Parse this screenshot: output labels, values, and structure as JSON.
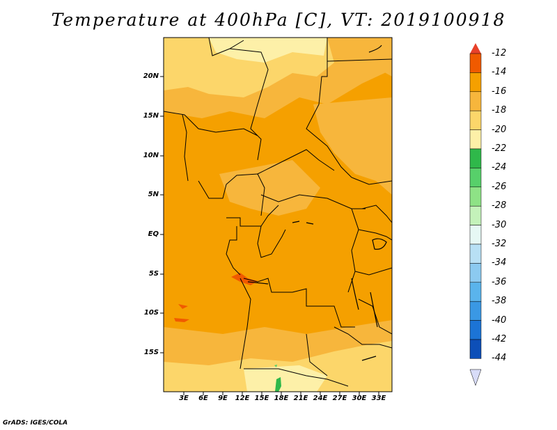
{
  "title": "Temperature at 400hPa [C], VT: 2019100918",
  "credit": "GrADS: IGES/COLA",
  "latitude_labels": [
    "20N",
    "15N",
    "10N",
    "5N",
    "EQ",
    "5S",
    "10S",
    "15S"
  ],
  "longitude_labels": [
    "3E",
    "6E",
    "9E",
    "12E",
    "15E",
    "18E",
    "21E",
    "24E",
    "27E",
    "30E",
    "33E"
  ],
  "colorbar": {
    "labels": [
      "-12",
      "-14",
      "-16",
      "-18",
      "-20",
      "-22",
      "-24",
      "-26",
      "-28",
      "-30",
      "-32",
      "-34",
      "-36",
      "-38",
      "-40",
      "-42",
      "-44"
    ],
    "colors": [
      "#f05a00",
      "#f5a000",
      "#f7b63c",
      "#fcd66a",
      "#fdf0a8",
      "#2fb84a",
      "#57d06a",
      "#8ee286",
      "#c4f2ba",
      "#e6f8f4",
      "#b8e0f4",
      "#8ccaf0",
      "#5ab4ec",
      "#3a98e4",
      "#1c74d6",
      "#0d4fb8",
      "#0a1e78"
    ],
    "top_arrow_color": "#e8412a",
    "bottom_arrow_color": "#d8dcf8"
  },
  "colors": {
    "warm_main": "#f5a000",
    "warm_mid": "#f7b63c",
    "warm_light": "#fcd66a",
    "warm_pale": "#fdf0a8",
    "hot": "#f05a00",
    "cool_green": "#2fb84a"
  }
}
